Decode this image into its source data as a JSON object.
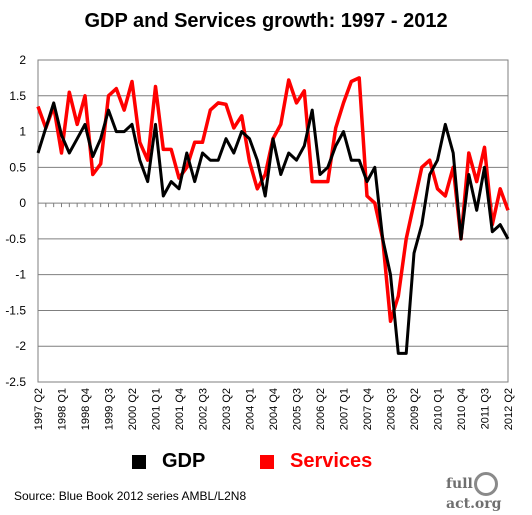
{
  "title": "GDP and Services growth: 1997 - 2012",
  "source": "Source: Blue Book 2012 series AMBL/L2N8",
  "logo": "fullfact.org",
  "chart_data": {
    "type": "line",
    "title": "GDP and Services growth: 1997 - 2012",
    "xlabel": "",
    "ylabel": "",
    "ylim": [
      -2.5,
      2
    ],
    "yticks": [
      2,
      1.5,
      1,
      0.5,
      0,
      -0.5,
      -1,
      -1.5,
      -2,
      -2.5
    ],
    "grid": true,
    "legend_position": "bottom",
    "x_tick_labels": [
      "1997 Q2",
      "1998 Q1",
      "1998 Q4",
      "1999 Q3",
      "2000 Q2",
      "2001 Q1",
      "2001 Q4",
      "2002 Q3",
      "2003 Q2",
      "2004 Q1",
      "2004 Q4",
      "2005 Q3",
      "2006 Q2",
      "2007 Q1",
      "2007 Q4",
      "2008 Q3",
      "2009 Q2",
      "2010 Q1",
      "2010 Q4",
      "2011 Q3",
      "2012 Q2"
    ],
    "series": [
      {
        "name": "GDP",
        "color": "#000000",
        "values": [
          0.7,
          1.05,
          1.4,
          0.95,
          0.7,
          0.9,
          1.1,
          0.65,
          0.9,
          1.3,
          1.0,
          1.0,
          1.1,
          0.6,
          0.3,
          1.1,
          0.1,
          0.3,
          0.2,
          0.7,
          0.3,
          0.7,
          0.6,
          0.6,
          0.9,
          0.7,
          1.0,
          0.9,
          0.6,
          0.1,
          0.9,
          0.4,
          0.7,
          0.6,
          0.8,
          1.3,
          0.4,
          0.5,
          0.8,
          1.0,
          0.6,
          0.6,
          0.3,
          0.5,
          -0.5,
          -1.0,
          -2.1,
          -2.1,
          -0.7,
          -0.3,
          0.4,
          0.6,
          1.1,
          0.7,
          -0.5,
          0.4,
          -0.1,
          0.5,
          -0.4,
          -0.3,
          -0.5
        ]
      },
      {
        "name": "Services",
        "color": "#ff0000",
        "values": [
          1.35,
          1.05,
          1.35,
          0.7,
          1.55,
          1.1,
          1.5,
          0.4,
          0.55,
          1.5,
          1.6,
          1.3,
          1.7,
          0.85,
          0.6,
          1.63,
          0.75,
          0.75,
          0.35,
          0.5,
          0.85,
          0.85,
          1.3,
          1.4,
          1.38,
          1.05,
          1.22,
          0.58,
          0.2,
          0.4,
          0.9,
          1.1,
          1.72,
          1.4,
          1.57,
          0.3,
          0.3,
          0.3,
          1.05,
          1.4,
          1.7,
          1.75,
          0.1,
          0.0,
          -0.5,
          -1.65,
          -1.3,
          -0.5,
          0.0,
          0.5,
          0.6,
          0.2,
          0.1,
          0.5,
          -0.5,
          0.7,
          0.3,
          0.78,
          -0.3,
          0.2,
          -0.1
        ]
      }
    ]
  }
}
